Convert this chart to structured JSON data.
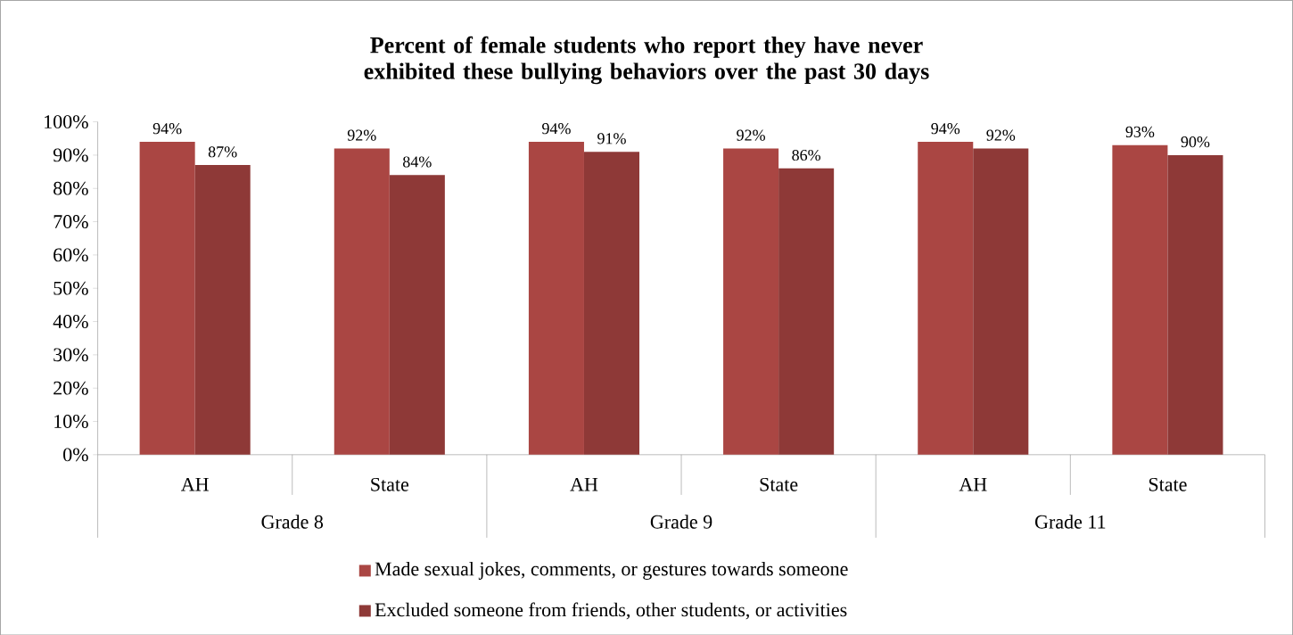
{
  "chart_data": {
    "type": "bar",
    "title": "Percent of female students who report they have never exhibited these bullying behaviors over the past 30 days",
    "categories": [
      "AH",
      "State",
      "AH",
      "State",
      "AH",
      "State"
    ],
    "annotations": [
      "Grade 8",
      "Grade 9",
      "Grade 11"
    ],
    "series": [
      {
        "name": "Made sexual jokes, comments, or gestures towards someone",
        "color": "#aa4643",
        "values": [
          94,
          92,
          94,
          92,
          94,
          93
        ],
        "value_labels": [
          "94%",
          "92%",
          "94%",
          "92%",
          "94%",
          "93%"
        ]
      },
      {
        "name": "Excluded someone from friends, other students, or activities",
        "color": "#8e3937",
        "values": [
          87,
          84,
          91,
          86,
          92,
          90
        ],
        "value_labels": [
          "87%",
          "84%",
          "91%",
          "86%",
          "92%",
          "90%"
        ]
      }
    ],
    "ylim": [
      0,
      100
    ],
    "yticks": [
      {
        "value": 0,
        "label": "0%"
      },
      {
        "value": 10,
        "label": "10%"
      },
      {
        "value": 20,
        "label": "20%"
      },
      {
        "value": 30,
        "label": "30%"
      },
      {
        "value": 40,
        "label": "40%"
      },
      {
        "value": 50,
        "label": "50%"
      },
      {
        "value": 60,
        "label": "60%"
      },
      {
        "value": 70,
        "label": "70%"
      },
      {
        "value": 80,
        "label": "80%"
      },
      {
        "value": 90,
        "label": "90%"
      },
      {
        "value": 100,
        "label": "100%"
      }
    ],
    "legend": "bottom"
  }
}
